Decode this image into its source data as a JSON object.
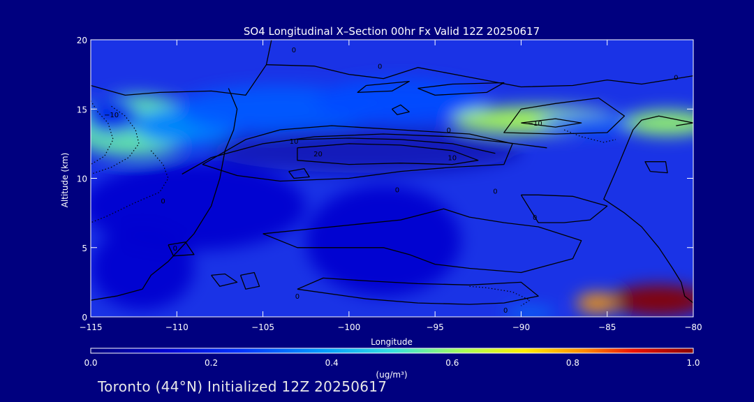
{
  "chart_data": {
    "type": "heatmap",
    "title": "SO4 Longitudinal X–Section 00hr  Fx Valid 12Z 20250617",
    "xlabel": "Longitude",
    "ylabel": "Altitude (km)",
    "xlim": [
      -115,
      -80
    ],
    "ylim": [
      0,
      20
    ],
    "x_ticks": [
      -115,
      -110,
      -105,
      -100,
      -95,
      -90,
      -85,
      -80
    ],
    "x_tick_labels": [
      "−115",
      "−110",
      "−105",
      "−100",
      "−95",
      "−90",
      "−85",
      "−80"
    ],
    "y_ticks": [
      0,
      5,
      10,
      15,
      20
    ],
    "y_tick_labels": [
      "0",
      "5",
      "10",
      "15",
      "20"
    ],
    "colorbar": {
      "min": 0.0,
      "max": 1.0,
      "ticks": [
        0.0,
        0.2,
        0.4,
        0.6,
        0.8,
        1.0
      ],
      "tick_labels": [
        "0.0",
        "0.2",
        "0.4",
        "0.6",
        "0.8",
        "1.0"
      ],
      "units_label": "(ug/m³)"
    },
    "field_blobs": [
      {
        "lon": -112.5,
        "alt": 13.8,
        "rlon": 3.8,
        "ralt": 2.2,
        "value": 0.55
      },
      {
        "lon": -113.8,
        "alt": 14.5,
        "rlon": 1.6,
        "ralt": 1.3,
        "value": 0.2
      },
      {
        "lon": -109.5,
        "alt": 13.8,
        "rlon": 3.0,
        "ralt": 1.4,
        "value": 0.35
      },
      {
        "lon": -104,
        "alt": 15.0,
        "rlon": 6.0,
        "ralt": 1.7,
        "value": 0.3
      },
      {
        "lon": -97,
        "alt": 15.6,
        "rlon": 5.0,
        "ralt": 1.6,
        "value": 0.28
      },
      {
        "lon": -99,
        "alt": 12.0,
        "rlon": 9.0,
        "ralt": 1.6,
        "value": -0.2
      },
      {
        "lon": -89,
        "alt": 14.2,
        "rlon": 5.0,
        "ralt": 1.0,
        "value": 0.62
      },
      {
        "lon": -86,
        "alt": 14.0,
        "rlon": 3.0,
        "ralt": 0.7,
        "value": 0.3
      },
      {
        "lon": -81.5,
        "alt": 14.0,
        "rlon": 2.5,
        "ralt": 0.9,
        "value": 0.6
      },
      {
        "lon": -109,
        "alt": 8.0,
        "rlon": 6.5,
        "ralt": 3.2,
        "value": 0.12
      },
      {
        "lon": -98,
        "alt": 5.5,
        "rlon": 4.5,
        "ralt": 4.0,
        "value": 0.12
      },
      {
        "lon": -112,
        "alt": 3.5,
        "rlon": 3.0,
        "ralt": 3.0,
        "value": 0.12
      },
      {
        "lon": -82,
        "alt": 1.2,
        "rlon": 2.8,
        "ralt": 1.1,
        "value": 1.0
      },
      {
        "lon": -85.6,
        "alt": 1.0,
        "rlon": 1.2,
        "ralt": 0.7,
        "value": 0.8
      },
      {
        "lon": -89.5,
        "alt": 0.3,
        "rlon": 1.5,
        "ralt": 0.3,
        "value": 0.35
      }
    ],
    "contours": [
      {
        "level": "0",
        "style": "solid",
        "points": [
          [
            -115,
            16.7
          ],
          [
            -113,
            16
          ],
          [
            -111,
            16.2
          ],
          [
            -108,
            16.3
          ],
          [
            -106,
            16
          ],
          [
            -104.8,
            18.2
          ],
          [
            -104.5,
            20
          ]
        ]
      },
      {
        "level": "0",
        "style": "solid",
        "points": [
          [
            -104.8,
            18.2
          ],
          [
            -102,
            18.1
          ],
          [
            -100,
            17.5
          ],
          [
            -98,
            17.2
          ],
          [
            -96,
            18
          ],
          [
            -93,
            17.3
          ],
          [
            -90,
            16.6
          ],
          [
            -87,
            16.7
          ],
          [
            -85,
            17.1
          ],
          [
            -83,
            16.8
          ],
          [
            -81,
            17.2
          ],
          [
            -80,
            17.4
          ]
        ]
      },
      {
        "level": "0",
        "style": "solid",
        "points": [
          [
            -107,
            16.5
          ],
          [
            -106.5,
            15
          ],
          [
            -106.7,
            13.5
          ],
          [
            -107.2,
            12
          ],
          [
            -107.5,
            10
          ],
          [
            -108,
            8
          ],
          [
            -109,
            6
          ],
          [
            -110.5,
            4
          ],
          [
            -111.5,
            3
          ],
          [
            -112,
            2
          ],
          [
            -113.5,
            1.5
          ],
          [
            -115,
            1.2
          ]
        ]
      },
      {
        "level": "10",
        "style": "solid",
        "points": [
          [
            -104,
            13.5
          ],
          [
            -101,
            13.8
          ],
          [
            -97,
            13.5
          ],
          [
            -93,
            13.2
          ],
          [
            -90.5,
            12.5
          ],
          [
            -91,
            11
          ],
          [
            -94,
            10.8
          ],
          [
            -97,
            10.5
          ],
          [
            -100,
            10
          ],
          [
            -104,
            9.8
          ],
          [
            -106.5,
            10.2
          ],
          [
            -108.5,
            11
          ],
          [
            -106,
            12.8
          ],
          [
            -104,
            13.5
          ]
        ]
      },
      {
        "level": "20",
        "style": "solid",
        "points": [
          [
            -103,
            12.2
          ],
          [
            -100,
            12.5
          ],
          [
            -97,
            12.4
          ],
          [
            -94,
            12.0
          ],
          [
            -92.5,
            11.3
          ],
          [
            -94,
            11.0
          ],
          [
            -97,
            11.1
          ],
          [
            -100,
            11.0
          ],
          [
            -103,
            11.3
          ],
          [
            -103,
            12.2
          ]
        ]
      },
      {
        "level": "0",
        "style": "solid",
        "points": [
          [
            -109.7,
            10.3
          ],
          [
            -108,
            11.5
          ],
          [
            -105,
            12.5
          ],
          [
            -102,
            13.0
          ],
          [
            -98,
            13.2
          ],
          [
            -94,
            13.0
          ],
          [
            -91,
            12.6
          ],
          [
            -88.5,
            12.2
          ]
        ]
      },
      {
        "level": "0",
        "style": "solid",
        "points": [
          [
            -103,
            12.8
          ],
          [
            -100,
            12.9
          ],
          [
            -97,
            12.8
          ],
          [
            -94,
            12.5
          ],
          [
            -91.5,
            11.8
          ]
        ]
      },
      {
        "level": "0",
        "style": "solid",
        "points": [
          [
            -105,
            6.0
          ],
          [
            -101,
            6.5
          ],
          [
            -97,
            7.0
          ],
          [
            -94.5,
            7.8
          ],
          [
            -93,
            7.2
          ],
          [
            -91,
            6.8
          ],
          [
            -89,
            6.5
          ],
          [
            -86.5,
            5.5
          ],
          [
            -87,
            4.2
          ],
          [
            -90,
            3.2
          ],
          [
            -93,
            3.5
          ],
          [
            -95,
            3.8
          ],
          [
            -96.5,
            4.5
          ],
          [
            -98,
            5.0
          ],
          [
            -101,
            5.0
          ],
          [
            -103,
            5.0
          ],
          [
            -105,
            6.0
          ]
        ]
      },
      {
        "level": "0",
        "style": "solid",
        "points": [
          [
            -103,
            2.0
          ],
          [
            -101.5,
            2.8
          ],
          [
            -99,
            2.6
          ],
          [
            -96,
            2.4
          ],
          [
            -93,
            2.3
          ],
          [
            -90,
            2.5
          ],
          [
            -89,
            1.5
          ],
          [
            -91,
            1.0
          ],
          [
            -93,
            0.9
          ],
          [
            -96,
            1.0
          ],
          [
            -99,
            1.3
          ],
          [
            -103,
            2.0
          ]
        ]
      },
      {
        "level": "0",
        "style": "solid",
        "points": [
          [
            -90,
            8.8
          ],
          [
            -89,
            8.8
          ],
          [
            -87,
            8.7
          ],
          [
            -85,
            8.0
          ],
          [
            -86,
            7.0
          ],
          [
            -87.5,
            6.8
          ],
          [
            -89,
            6.8
          ],
          [
            -90,
            8.8
          ]
        ]
      },
      {
        "level": "0",
        "style": "solid",
        "points": [
          [
            -90,
            15.0
          ],
          [
            -88,
            15.4
          ],
          [
            -85.5,
            15.8
          ],
          [
            -84,
            14.5
          ],
          [
            -85,
            13.3
          ],
          [
            -88,
            13.2
          ],
          [
            -91,
            13.3
          ],
          [
            -90,
            15.0
          ]
        ]
      },
      {
        "level": "10",
        "style": "solid",
        "points": [
          [
            -90,
            14.0
          ],
          [
            -88,
            14.3
          ],
          [
            -86.5,
            14.0
          ],
          [
            -88,
            13.7
          ],
          [
            -90,
            14.0
          ]
        ]
      },
      {
        "level": "0",
        "style": "solid",
        "points": [
          [
            -81,
            13.8
          ],
          [
            -80,
            14.0
          ],
          [
            -82,
            14.5
          ],
          [
            -83,
            14.2
          ],
          [
            -83.5,
            13.5
          ],
          [
            -84.5,
            10.5
          ],
          [
            -85.2,
            8.5
          ],
          [
            -84,
            7.5
          ],
          [
            -83,
            6.5
          ],
          [
            -82,
            5.0
          ],
          [
            -81.2,
            3.5
          ],
          [
            -80.7,
            2.5
          ],
          [
            -80.5,
            1.5
          ],
          [
            -80,
            1.0
          ]
        ]
      },
      {
        "level": "0",
        "style": "solid",
        "points": [
          [
            -82.5,
            10.5
          ],
          [
            -81.5,
            10.4
          ],
          [
            -81.6,
            11.2
          ],
          [
            -82.8,
            11.2
          ],
          [
            -82.5,
            10.5
          ]
        ]
      },
      {
        "level": "0",
        "style": "solid",
        "points": [
          [
            -96,
            16.5
          ],
          [
            -94,
            16.8
          ],
          [
            -91,
            16.9
          ],
          [
            -92,
            16.2
          ],
          [
            -95,
            16.0
          ],
          [
            -96,
            16.5
          ]
        ]
      },
      {
        "level": "0",
        "style": "solid",
        "points": [
          [
            -99,
            16.7
          ],
          [
            -96.5,
            17.0
          ],
          [
            -97.5,
            16.3
          ],
          [
            -99.5,
            16.2
          ],
          [
            -99,
            16.7
          ]
        ]
      },
      {
        "level": "0",
        "style": "solid",
        "points": [
          [
            -108,
            3.0
          ],
          [
            -107.2,
            3.1
          ],
          [
            -106.5,
            2.5
          ],
          [
            -107.5,
            2.2
          ],
          [
            -108,
            3.0
          ]
        ]
      },
      {
        "level": "0",
        "style": "solid",
        "points": [
          [
            -106.3,
            3.0
          ],
          [
            -105.5,
            3.2
          ],
          [
            -105.2,
            2.2
          ],
          [
            -106,
            2.0
          ],
          [
            -106.3,
            3.0
          ]
        ]
      },
      {
        "level": "0",
        "style": "solid",
        "points": [
          [
            -110.5,
            5.2
          ],
          [
            -109.5,
            5.4
          ],
          [
            -109,
            4.5
          ],
          [
            -110.2,
            4.4
          ],
          [
            -110.5,
            5.2
          ]
        ]
      },
      {
        "level": "0",
        "style": "solid",
        "points": [
          [
            -103.5,
            10.5
          ],
          [
            -102.6,
            10.7
          ],
          [
            -102.3,
            10.1
          ],
          [
            -103.2,
            10.0
          ],
          [
            -103.5,
            10.5
          ]
        ]
      },
      {
        "level": "0",
        "style": "solid",
        "points": [
          [
            -97.5,
            15.0
          ],
          [
            -97,
            15.3
          ],
          [
            -96.5,
            14.8
          ],
          [
            -97.2,
            14.6
          ],
          [
            -97.5,
            15.0
          ]
        ]
      },
      {
        "level": "-10",
        "style": "dotted",
        "points": [
          [
            -113.8,
            15.2
          ],
          [
            -113,
            14.5
          ],
          [
            -112.4,
            13.5
          ],
          [
            -112.2,
            12.5
          ],
          [
            -112.8,
            11.5
          ],
          [
            -113.8,
            10.8
          ],
          [
            -115,
            10.3
          ]
        ]
      },
      {
        "level": "-10",
        "style": "dotted",
        "points": [
          [
            -115,
            15.6
          ],
          [
            -114.6,
            14.8
          ],
          [
            -114,
            14.0
          ],
          [
            -113.7,
            12.8
          ],
          [
            -114.2,
            11.6
          ],
          [
            -115,
            11.0
          ]
        ]
      },
      {
        "level": "-10",
        "style": "dotted",
        "points": [
          [
            -111.5,
            12.0
          ],
          [
            -110.8,
            11.0
          ],
          [
            -110.5,
            10.0
          ],
          [
            -111,
            9.0
          ],
          [
            -112.5,
            8.2
          ],
          [
            -114,
            7.3
          ],
          [
            -115,
            6.8
          ]
        ]
      },
      {
        "level": "-10",
        "style": "dotted",
        "points": [
          [
            -87.5,
            13.5
          ],
          [
            -86.5,
            13.0
          ],
          [
            -85.2,
            12.6
          ],
          [
            -84.5,
            12.8
          ]
        ]
      },
      {
        "level": "-10",
        "style": "dotted",
        "points": [
          [
            -93,
            2.2
          ],
          [
            -92,
            2.1
          ],
          [
            -90.5,
            1.8
          ],
          [
            -89.5,
            1.2
          ],
          [
            -90,
            0.8
          ]
        ]
      }
    ],
    "contour_labels": [
      {
        "text": "−10",
        "lon": -113.8,
        "alt": 14.6
      },
      {
        "text": "0",
        "lon": -103.2,
        "alt": 19.3
      },
      {
        "text": "0",
        "lon": -98.2,
        "alt": 18.1
      },
      {
        "text": "0",
        "lon": -81,
        "alt": 17.3
      },
      {
        "text": "10",
        "lon": -103.2,
        "alt": 12.7
      },
      {
        "text": "20",
        "lon": -101.8,
        "alt": 11.8
      },
      {
        "text": "0",
        "lon": -94.2,
        "alt": 13.5
      },
      {
        "text": "10",
        "lon": -94,
        "alt": 11.5
      },
      {
        "text": "−10",
        "lon": -89.2,
        "alt": 14.0
      },
      {
        "text": "0",
        "lon": -97.2,
        "alt": 9.2
      },
      {
        "text": "0",
        "lon": -91.5,
        "alt": 9.1
      },
      {
        "text": "0",
        "lon": -89.2,
        "alt": 7.2
      },
      {
        "text": "0",
        "lon": -110.8,
        "alt": 8.4
      },
      {
        "text": "0",
        "lon": -110.1,
        "alt": 5.0
      },
      {
        "text": "0",
        "lon": -103,
        "alt": 1.5
      },
      {
        "text": "0",
        "lon": -90.9,
        "alt": 0.5
      }
    ]
  },
  "footer": {
    "text": "Toronto (44°N) Initialized 12Z 20250617"
  },
  "colors": {
    "background": "#00007f",
    "axis": "#ffffff",
    "contour": "#000000"
  }
}
